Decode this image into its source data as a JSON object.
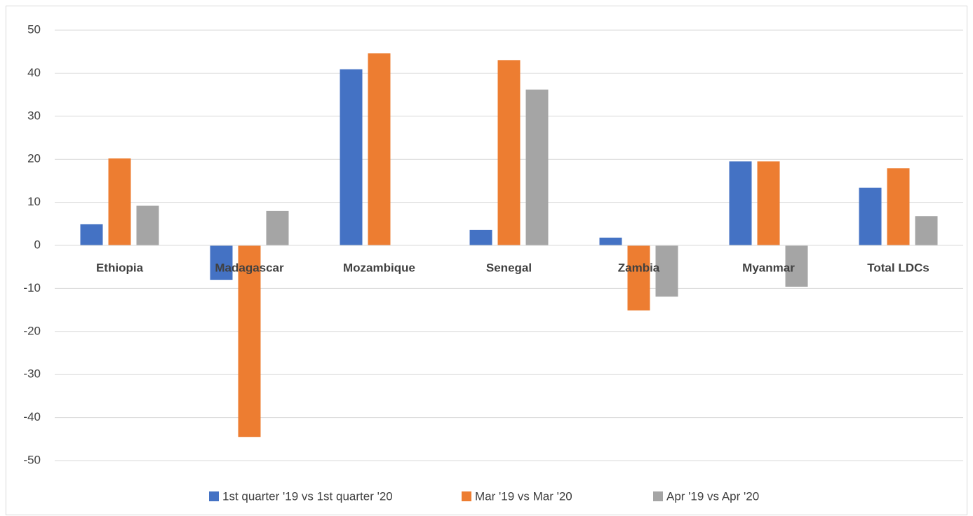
{
  "chart_data": {
    "type": "bar",
    "categories": [
      "Ethiopia",
      "Madagascar",
      "Mozambique",
      "Senegal",
      "Zambia",
      "Myanmar",
      "Total LDCs"
    ],
    "series": [
      {
        "name": "1st quarter '19 vs 1st quarter '20",
        "color": "#4472c4",
        "values": [
          4.9,
          -8.0,
          40.9,
          3.6,
          1.8,
          19.5,
          13.4
        ]
      },
      {
        "name": "Mar '19 vs Mar '20",
        "color": "#ed7d31",
        "values": [
          20.2,
          -44.5,
          44.6,
          43.0,
          -15.1,
          19.5,
          17.9
        ]
      },
      {
        "name": "Apr '19 vs Apr '20",
        "color": "#a5a5a5",
        "values": [
          9.2,
          8.0,
          null,
          36.2,
          -11.9,
          -9.6,
          6.8
        ]
      }
    ],
    "ylim": [
      -50,
      50
    ],
    "yticks": [
      -50,
      -40,
      -30,
      -20,
      -10,
      0,
      10,
      20,
      30,
      40,
      50
    ],
    "grid": true,
    "legend": "bottom"
  }
}
